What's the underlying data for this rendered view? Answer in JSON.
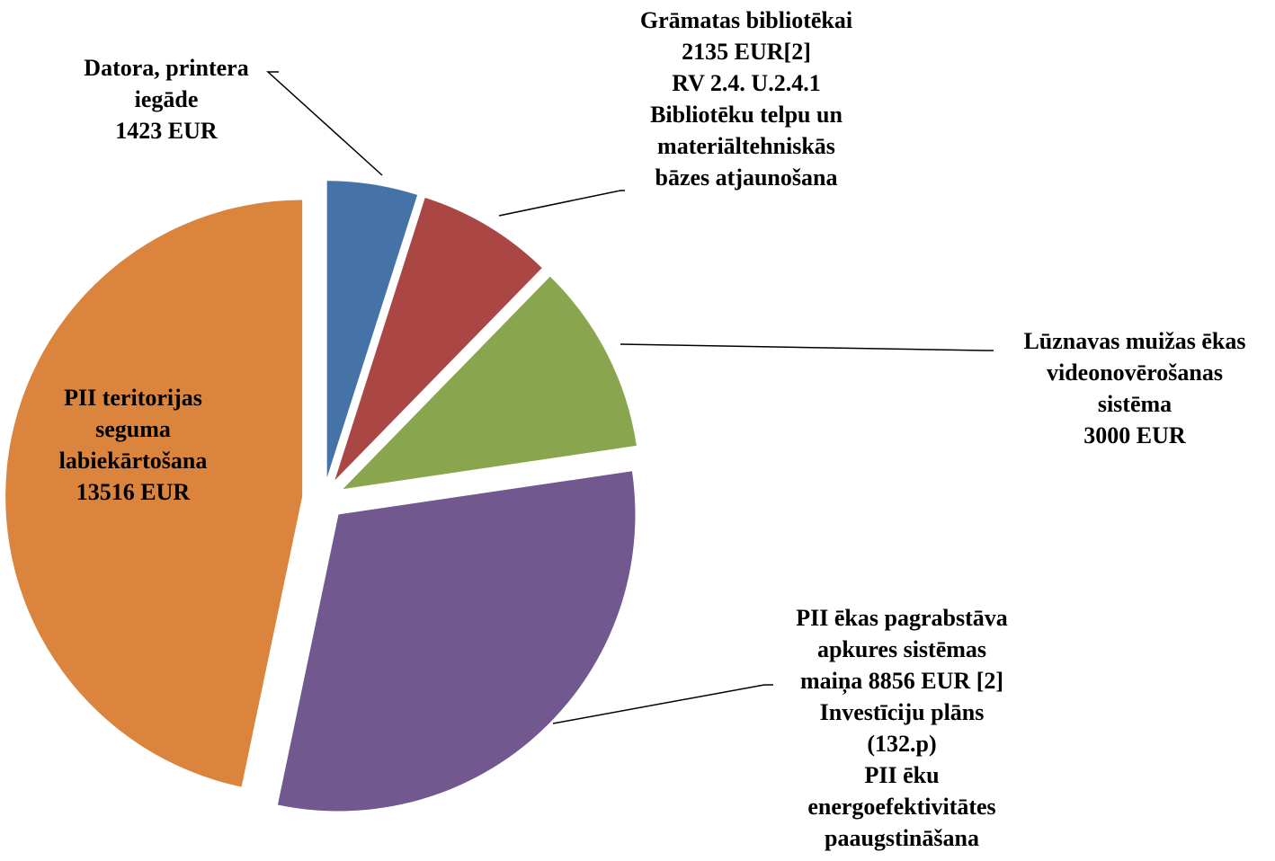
{
  "chart_data": {
    "type": "pie",
    "categories": [
      [
        "Datora, printera",
        "iegāde",
        "1423 EUR"
      ],
      [
        "Grāmatas bibliotēkai",
        "2135 EUR[2]",
        "RV 2.4. U.2.4.1",
        "Bibliotēku telpu un",
        "materiāltehniskās",
        "bāzes atjaunošana"
      ],
      [
        "Lūznavas muižas ēkas",
        "videonovērošanas",
        "sistēma",
        "3000 EUR"
      ],
      [
        "PII ēkas pagrabstāva",
        "apkures sistēmas",
        "maiņa 8856 EUR [2]",
        "Investīciju plāns",
        "(132.p)",
        "PII ēku",
        "energoefektivitātes",
        "paaugstināšana"
      ],
      [
        "PII teritorijas",
        "seguma",
        "labiekārtošana",
        "13516 EUR"
      ]
    ],
    "values": [
      1423,
      2135,
      3000,
      8856,
      13516
    ],
    "colors": [
      "#4572a7",
      "#aa4643",
      "#89a54e",
      "#71588f",
      "#db843d"
    ]
  }
}
